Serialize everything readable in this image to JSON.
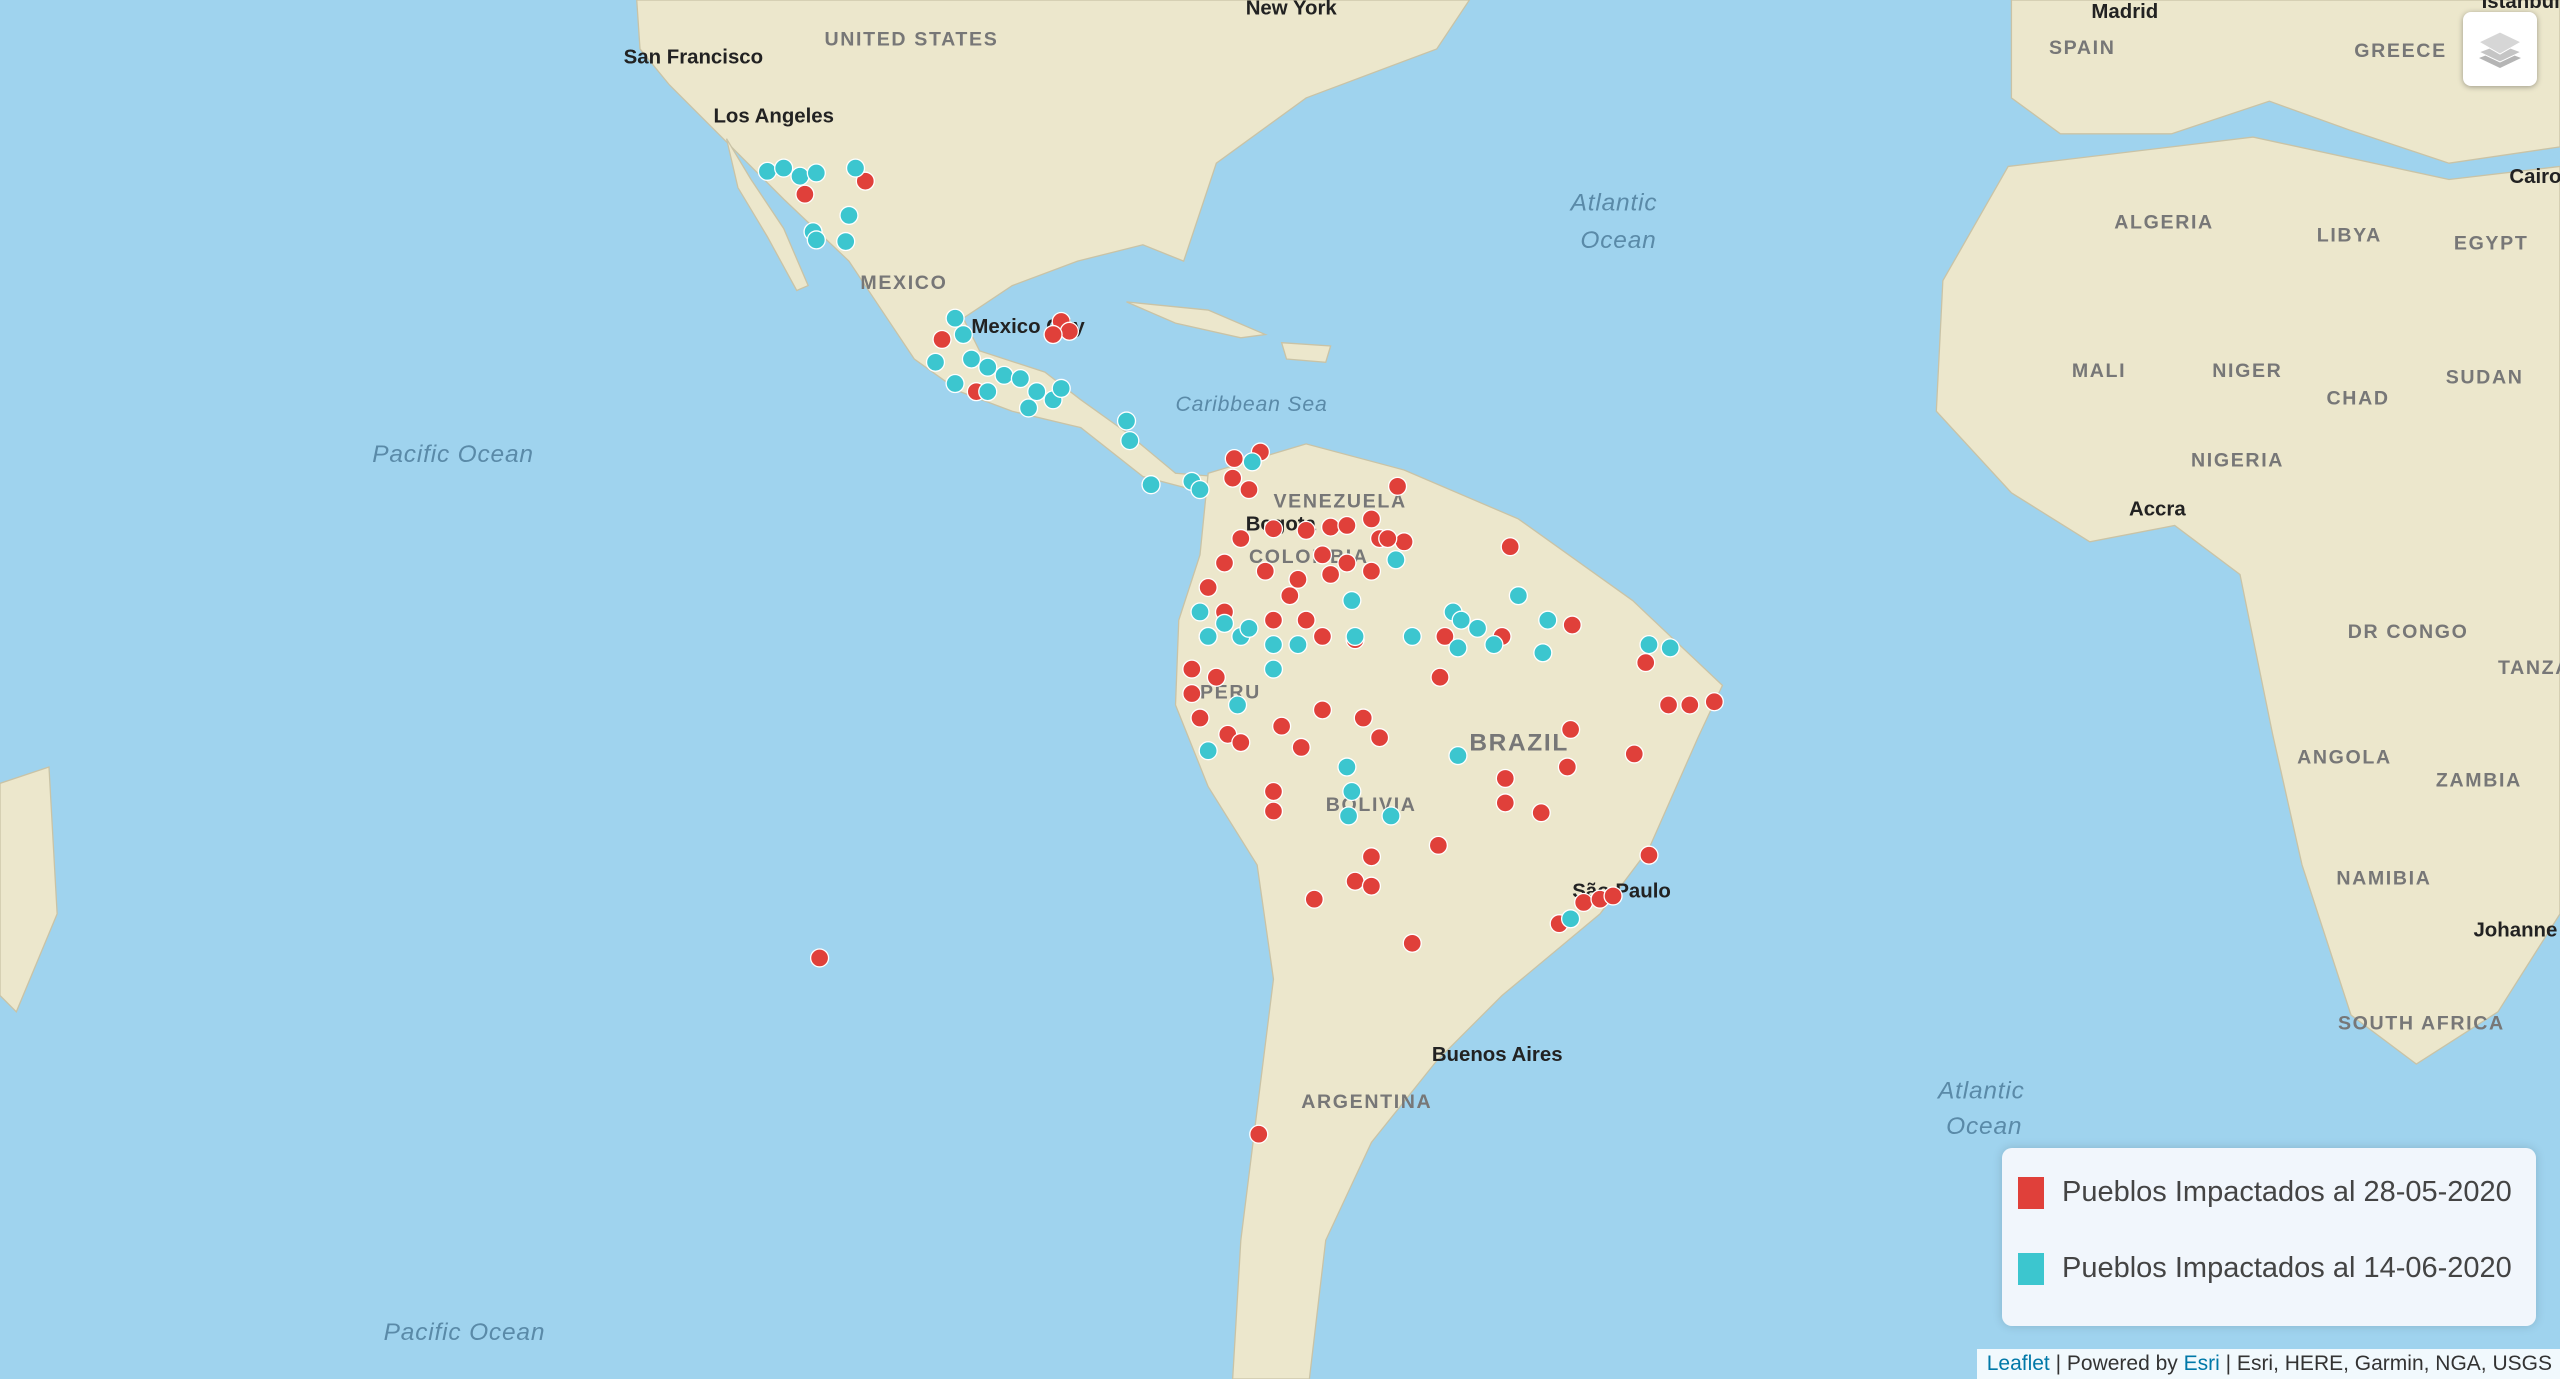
{
  "map": {
    "labels": {
      "united_states": "UNITED STATES",
      "san_francisco": "San Francisco",
      "los_angeles": "Los Angeles",
      "new_york": "New York",
      "mexico": "MEXICO",
      "mexico_city": "Mexico City",
      "caribbean_sea": "Caribbean Sea",
      "pacific_ocean_1": "Pacific Ocean",
      "pacific_ocean_2": "Pacific Ocean",
      "atlantic_ocean_1": "Atlantic",
      "atlantic_ocean_1b": "Ocean",
      "atlantic_ocean_2": "Atlantic",
      "atlantic_ocean_2b": "Ocean",
      "venezuela": "VENEZUELA",
      "bogota": "Bogota",
      "colombia": "COLOMBIA",
      "peru": "PERU",
      "brazil": "BRAZIL",
      "bolivia": "BOLIVIA",
      "sao_paulo": "São Paulo",
      "buenos_aires": "Buenos Aires",
      "argentina": "ARGENTINA",
      "madrid": "Madrid",
      "spain": "SPAIN",
      "greece": "GREECE",
      "istanbul": "Istanbul",
      "algeria": "ALGERIA",
      "libya": "LIBYA",
      "egypt": "EGYPT",
      "cairo": "Cairo",
      "mali": "MALI",
      "niger": "NIGER",
      "chad": "CHAD",
      "sudan": "SUDAN",
      "nigeria": "NIGERIA",
      "accra": "Accra",
      "dr_congo": "DR CONGO",
      "tanzania": "TANZA",
      "angola": "ANGOLA",
      "zambia": "ZAMBIA",
      "namibia": "NAMIBIA",
      "johannesburg": "Johanne",
      "south_africa": "SOUTH AFRICA"
    },
    "layers_control_icon": "layers-icon"
  },
  "legend": {
    "items": [
      {
        "label": "Pueblos Impactados al 28-05-2020",
        "color": "#e0403a"
      },
      {
        "label": "Pueblos Impactados al 14-06-2020",
        "color": "#3cc6cf"
      }
    ]
  },
  "attribution": {
    "leaflet": "Leaflet",
    "sep1": " | Powered by ",
    "esri": "Esri",
    "rest": " | Esri, HERE, Garmin, NGA, USGS"
  },
  "colors": {
    "ocean": "#9fd3ee",
    "land": "#ede8cf",
    "red_marker": "#e0403a",
    "teal_marker": "#3cc6cf"
  }
}
